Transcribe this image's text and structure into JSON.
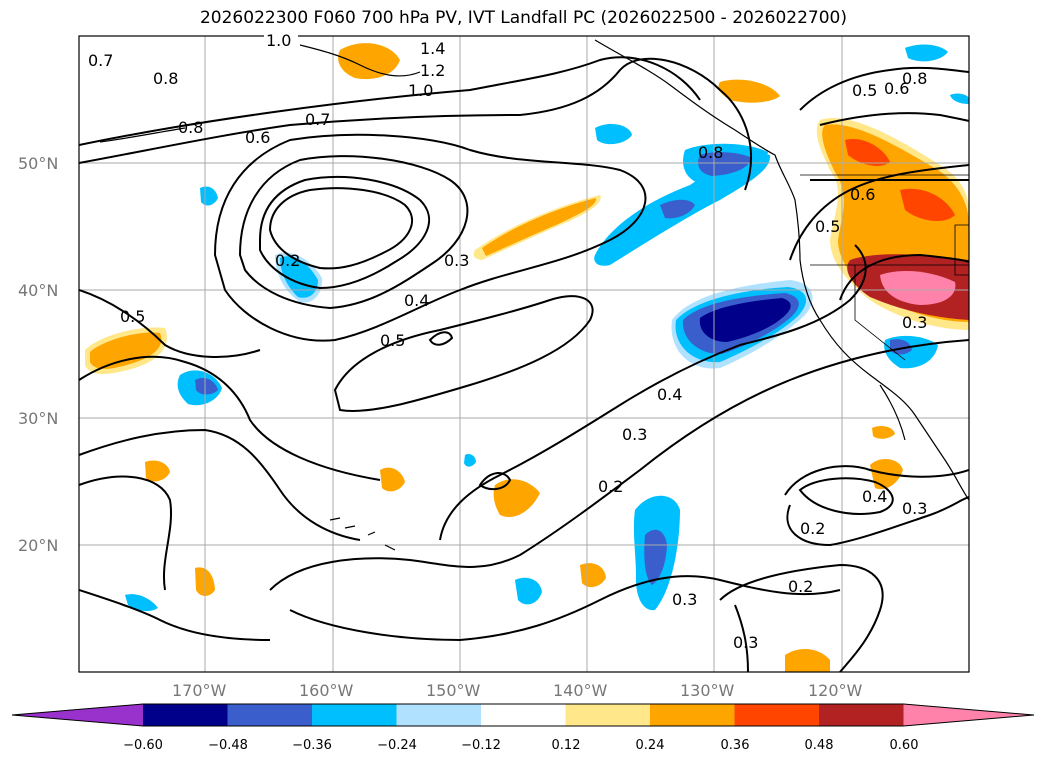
{
  "title": "2026022300 F060 700 hPa PV, IVT Landfall PC (2026022500 - 2026022700)",
  "lat_labels": [
    "50°N",
    "40°N",
    "30°N",
    "20°N"
  ],
  "lon_labels": [
    "170°W",
    "160°W",
    "150°W",
    "140°W",
    "130°W",
    "120°W"
  ],
  "contour_labels": [
    "1.0",
    "1.4",
    "1.2",
    "1.0",
    "0.7",
    "0.8",
    "0.8",
    "0.7",
    "0.6",
    "0.2",
    "0.3",
    "0.4",
    "0.5",
    "0.5",
    "0.8",
    "0.8",
    "0.5",
    "0.6",
    "0.6",
    "0.5",
    "0.3",
    "0.4",
    "0.3",
    "0.2",
    "0.3",
    "0.4",
    "0.3",
    "0.2",
    "0.2",
    "0.3"
  ],
  "colorbar": {
    "ticks": [
      "−0.60",
      "−0.48",
      "−0.36",
      "−0.24",
      "−0.12",
      "0.12",
      "0.24",
      "0.36",
      "0.48",
      "0.60"
    ],
    "colors": [
      "#9932cc",
      "#00008b",
      "#3a5fcd",
      "#00bfff",
      "#b0e2ff",
      "#ffffff",
      "#ffe78a",
      "#ffa500",
      "#ff4500",
      "#b22222",
      "#ff82ab"
    ]
  }
}
